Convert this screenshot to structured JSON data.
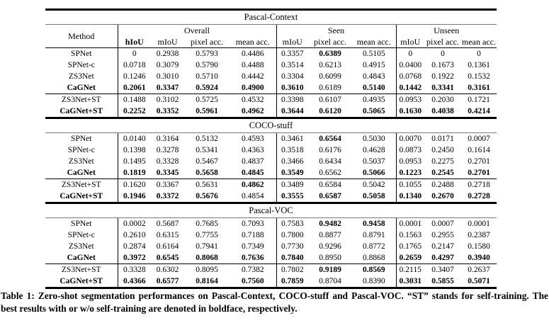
{
  "caption": "Table 1: Zero-shot segmentation performances on Pascal-Context, COCO-stuff and Pascal-VOC. “ST” stands for self-training. The best results with or w/o self-training are denoted in boldface, respectively.",
  "table": {
    "header": {
      "method": "Method",
      "groups": [
        {
          "label": "Overall",
          "subcols": [
            "hIoU",
            "mIoU",
            "pixel acc.",
            "mean acc."
          ],
          "bold_subcols": [
            1,
            0,
            0,
            0
          ]
        },
        {
          "label": "Seen",
          "subcols": [
            "mIoU",
            "pixel acc.",
            "mean acc."
          ],
          "bold_subcols": [
            0,
            0,
            0
          ]
        },
        {
          "label": "Unseen",
          "subcols": [
            "mIoU",
            "pixel acc.",
            "mean acc."
          ],
          "bold_subcols": [
            0,
            0,
            0
          ]
        }
      ]
    },
    "sections": [
      {
        "title": "Pascal-Context",
        "show_header": true,
        "rows": [
          {
            "method": "SPNet",
            "bold_method": false,
            "values": [
              "0",
              "0.2938",
              "0.5793",
              "0.4486",
              "0.3357",
              "0.6389",
              "0.5105",
              "0",
              "0",
              "0"
            ],
            "bold": [
              0,
              0,
              0,
              0,
              0,
              1,
              0,
              0,
              0,
              0
            ]
          },
          {
            "method": "SPNet-c",
            "bold_method": false,
            "values": [
              "0.0718",
              "0.3079",
              "0.5790",
              "0.4488",
              "0.3514",
              "0.6213",
              "0.4915",
              "0.0400",
              "0.1673",
              "0.1361"
            ],
            "bold": [
              0,
              0,
              0,
              0,
              0,
              0,
              0,
              0,
              0,
              0
            ]
          },
          {
            "method": "ZS3Net",
            "bold_method": false,
            "values": [
              "0.1246",
              "0.3010",
              "0.5710",
              "0.4442",
              "0.3304",
              "0.6099",
              "0.4843",
              "0.0768",
              "0.1922",
              "0.1532"
            ],
            "bold": [
              0,
              0,
              0,
              0,
              0,
              0,
              0,
              0,
              0,
              0
            ]
          },
          {
            "method": "CaGNet",
            "bold_method": true,
            "values": [
              "0.2061",
              "0.3347",
              "0.5924",
              "0.4900",
              "0.3610",
              "0.6189",
              "0.5140",
              "0.1442",
              "0.3341",
              "0.3161"
            ],
            "bold": [
              1,
              1,
              1,
              1,
              1,
              0,
              1,
              1,
              1,
              1
            ]
          }
        ],
        "st_rows": [
          {
            "method": "ZS3Net+ST",
            "bold_method": false,
            "values": [
              "0.1488",
              "0.3102",
              "0.5725",
              "0.4532",
              "0.3398",
              "0.6107",
              "0.4935",
              "0.0953",
              "0.2030",
              "0.1721"
            ],
            "bold": [
              0,
              0,
              0,
              0,
              0,
              0,
              0,
              0,
              0,
              0
            ]
          },
          {
            "method": "CaGNet+ST",
            "bold_method": true,
            "values": [
              "0.2252",
              "0.3352",
              "0.5961",
              "0.4962",
              "0.3644",
              "0.6120",
              "0.5065",
              "0.1630",
              "0.4038",
              "0.4214"
            ],
            "bold": [
              1,
              1,
              1,
              1,
              1,
              1,
              1,
              1,
              1,
              1
            ]
          }
        ]
      },
      {
        "title": "COCO-stuff",
        "show_header": false,
        "rows": [
          {
            "method": "SPNet",
            "bold_method": false,
            "values": [
              "0.0140",
              "0.3164",
              "0.5132",
              "0.4593",
              "0.3461",
              "0.6564",
              "0.5030",
              "0.0070",
              "0.0171",
              "0.0007"
            ],
            "bold": [
              0,
              0,
              0,
              0,
              0,
              1,
              0,
              0,
              0,
              0
            ]
          },
          {
            "method": "SPNet-c",
            "bold_method": false,
            "values": [
              "0.1398",
              "0.3278",
              "0.5341",
              "0.4363",
              "0.3518",
              "0.6176",
              "0.4628",
              "0.0873",
              "0.2450",
              "0.1614"
            ],
            "bold": [
              0,
              0,
              0,
              0,
              0,
              0,
              0,
              0,
              0,
              0
            ]
          },
          {
            "method": "ZS3Net",
            "bold_method": false,
            "values": [
              "0.1495",
              "0.3328",
              "0.5467",
              "0.4837",
              "0.3466",
              "0.6434",
              "0.5037",
              "0.0953",
              "0.2275",
              "0.2701"
            ],
            "bold": [
              0,
              0,
              0,
              0,
              0,
              0,
              0,
              0,
              0,
              0
            ]
          },
          {
            "method": "CaGNet",
            "bold_method": true,
            "values": [
              "0.1819",
              "0.3345",
              "0.5658",
              "0.4845",
              "0.3549",
              "0.6562",
              "0.5066",
              "0.1223",
              "0.2545",
              "0.2701"
            ],
            "bold": [
              1,
              1,
              1,
              1,
              1,
              0,
              1,
              1,
              1,
              1
            ]
          }
        ],
        "st_rows": [
          {
            "method": "ZS3Net+ST",
            "bold_method": false,
            "values": [
              "0.1620",
              "0.3367",
              "0.5631",
              "0.4862",
              "0.3489",
              "0.6584",
              "0.5042",
              "0.1055",
              "0.2488",
              "0.2718"
            ],
            "bold": [
              0,
              0,
              0,
              1,
              0,
              0,
              0,
              0,
              0,
              0
            ]
          },
          {
            "method": "CaGNet+ST",
            "bold_method": true,
            "values": [
              "0.1946",
              "0.3372",
              "0.5676",
              "0.4854",
              "0.3555",
              "0.6587",
              "0.5058",
              "0.1340",
              "0.2670",
              "0.2728"
            ],
            "bold": [
              1,
              1,
              1,
              0,
              1,
              1,
              1,
              1,
              1,
              1
            ]
          }
        ]
      },
      {
        "title": "Pascal-VOC",
        "show_header": false,
        "rows": [
          {
            "method": "SPNet",
            "bold_method": false,
            "values": [
              "0.0002",
              "0.5687",
              "0.7685",
              "0.7093",
              "0.7583",
              "0.9482",
              "0.9458",
              "0.0001",
              "0.0007",
              "0.0001"
            ],
            "bold": [
              0,
              0,
              0,
              0,
              0,
              1,
              1,
              0,
              0,
              0
            ]
          },
          {
            "method": "SPNet-c",
            "bold_method": false,
            "values": [
              "0.2610",
              "0.6315",
              "0.7755",
              "0.7188",
              "0.7800",
              "0.8877",
              "0.8791",
              "0.1563",
              "0.2955",
              "0.2387"
            ],
            "bold": [
              0,
              0,
              0,
              0,
              0,
              0,
              0,
              0,
              0,
              0
            ]
          },
          {
            "method": "ZS3Net",
            "bold_method": false,
            "values": [
              "0.2874",
              "0.6164",
              "0.7941",
              "0.7349",
              "0.7730",
              "0.9296",
              "0.8772",
              "0.1765",
              "0.2147",
              "0.1580"
            ],
            "bold": [
              0,
              0,
              0,
              0,
              0,
              0,
              0,
              0,
              0,
              0
            ]
          },
          {
            "method": "CaGNet",
            "bold_method": true,
            "values": [
              "0.3972",
              "0.6545",
              "0.8068",
              "0.7636",
              "0.7840",
              "0.8950",
              "0.8868",
              "0.2659",
              "0.4297",
              "0.3940"
            ],
            "bold": [
              1,
              1,
              1,
              1,
              1,
              0,
              0,
              1,
              1,
              1
            ]
          }
        ],
        "st_rows": [
          {
            "method": "ZS3Net+ST",
            "bold_method": false,
            "values": [
              "0.3328",
              "0.6302",
              "0.8095",
              "0.7382",
              "0.7802",
              "0.9189",
              "0.8569",
              "0.2115",
              "0.3407",
              "0.2637"
            ],
            "bold": [
              0,
              0,
              0,
              0,
              0,
              1,
              1,
              0,
              0,
              0
            ]
          },
          {
            "method": "CaGNet+ST",
            "bold_method": true,
            "values": [
              "0.4366",
              "0.6577",
              "0.8164",
              "0.7560",
              "0.7859",
              "0.8704",
              "0.8390",
              "0.3031",
              "0.5855",
              "0.5071"
            ],
            "bold": [
              1,
              1,
              1,
              1,
              1,
              0,
              0,
              1,
              1,
              1
            ]
          }
        ]
      }
    ]
  }
}
